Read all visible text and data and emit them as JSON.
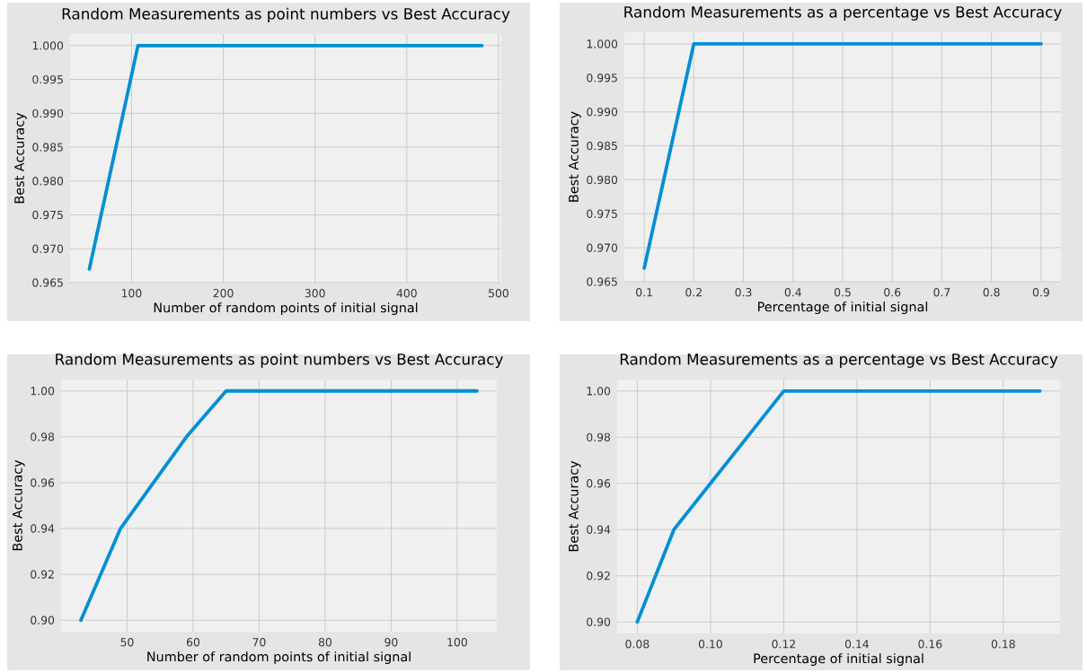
{
  "chart_data": [
    {
      "type": "line",
      "title": "Random Measurements as point numbers vs Best Accuracy",
      "xlabel": "Number of random points of initial signal",
      "ylabel": "Best Accuracy",
      "x": [
        54,
        107,
        161,
        214,
        268,
        321,
        375,
        428,
        482
      ],
      "series": [
        {
          "color": "#008fd5",
          "values": [
            0.967,
            1.0,
            1.0,
            1.0,
            1.0,
            1.0,
            1.0,
            1.0,
            1.0
          ]
        }
      ],
      "xlim": [
        33,
        503
      ],
      "ylim": [
        0.965,
        1.0017
      ],
      "xticks": [
        100,
        200,
        300,
        400,
        500
      ],
      "yticks": [
        {
          "value": 0.965,
          "label": "0.965"
        },
        {
          "value": 0.97,
          "label": "0.970"
        },
        {
          "value": 0.975,
          "label": "0.975"
        },
        {
          "value": 0.98,
          "label": "0.980"
        },
        {
          "value": 0.985,
          "label": "0.985"
        },
        {
          "value": 0.99,
          "label": "0.990"
        },
        {
          "value": 0.995,
          "label": "0.995"
        },
        {
          "value": 1.0,
          "label": "1.000"
        }
      ],
      "grid": true,
      "line_style": "solid",
      "marker": "none"
    },
    {
      "type": "line",
      "title": "Random Measurements as a percentage vs Best Accuracy",
      "xlabel": "Percentage of initial signal",
      "ylabel": "Best Accuracy",
      "x": [
        0.1,
        0.2,
        0.3,
        0.4,
        0.5,
        0.6,
        0.7,
        0.8,
        0.9
      ],
      "series": [
        {
          "color": "#008fd5",
          "values": [
            0.967,
            1.0,
            1.0,
            1.0,
            1.0,
            1.0,
            1.0,
            1.0,
            1.0
          ]
        }
      ],
      "xlim": [
        0.06,
        0.94
      ],
      "ylim": [
        0.965,
        1.0017
      ],
      "xticks": [
        0.1,
        0.2,
        0.3,
        0.4,
        0.5,
        0.6,
        0.7,
        0.8,
        0.9
      ],
      "yticks": [
        {
          "value": 0.965,
          "label": "0.965"
        },
        {
          "value": 0.97,
          "label": "0.970"
        },
        {
          "value": 0.975,
          "label": "0.975"
        },
        {
          "value": 0.98,
          "label": "0.980"
        },
        {
          "value": 0.985,
          "label": "0.985"
        },
        {
          "value": 0.99,
          "label": "0.990"
        },
        {
          "value": 0.995,
          "label": "0.995"
        },
        {
          "value": 1.0,
          "label": "1.000"
        }
      ],
      "grid": true,
      "line_style": "solid",
      "marker": "none"
    },
    {
      "type": "line",
      "title": "Random Measurements as point numbers vs Best Accuracy",
      "xlabel": "Number of random points of initial signal",
      "ylabel": "Best Accuracy",
      "x": [
        43,
        49,
        54,
        59,
        65,
        70,
        76,
        81,
        86,
        92,
        97,
        103
      ],
      "series": [
        {
          "color": "#008fd5",
          "values": [
            0.9,
            0.94,
            0.96,
            0.98,
            1.0,
            1.0,
            1.0,
            1.0,
            1.0,
            1.0,
            1.0,
            1.0
          ]
        }
      ],
      "xlim": [
        40,
        106
      ],
      "ylim": [
        0.895,
        1.005
      ],
      "xticks": [
        50,
        60,
        70,
        80,
        90,
        100
      ],
      "yticks": [
        {
          "value": 0.9,
          "label": "0.90"
        },
        {
          "value": 0.92,
          "label": "0.92"
        },
        {
          "value": 0.94,
          "label": "0.94"
        },
        {
          "value": 0.96,
          "label": "0.96"
        },
        {
          "value": 0.98,
          "label": "0.98"
        },
        {
          "value": 1.0,
          "label": "1.00"
        }
      ],
      "grid": true,
      "line_style": "solid",
      "marker": "none"
    },
    {
      "type": "line",
      "title": "Random Measurements as a percentage vs Best Accuracy",
      "xlabel": "Percentage of initial signal",
      "ylabel": "Best Accuracy",
      "x": [
        0.08,
        0.09,
        0.1,
        0.11,
        0.12,
        0.13,
        0.14,
        0.15,
        0.16,
        0.17,
        0.18,
        0.19
      ],
      "series": [
        {
          "color": "#008fd5",
          "values": [
            0.9,
            0.94,
            0.96,
            0.98,
            1.0,
            1.0,
            1.0,
            1.0,
            1.0,
            1.0,
            1.0,
            1.0
          ]
        }
      ],
      "xlim": [
        0.0745,
        0.1955
      ],
      "ylim": [
        0.895,
        1.005
      ],
      "xticks": [
        {
          "value": 0.08,
          "label": "0.08"
        },
        {
          "value": 0.1,
          "label": "0.10"
        },
        {
          "value": 0.12,
          "label": "0.12"
        },
        {
          "value": 0.14,
          "label": "0.14"
        },
        {
          "value": 0.16,
          "label": "0.16"
        },
        {
          "value": 0.18,
          "label": "0.18"
        }
      ],
      "yticks": [
        {
          "value": 0.9,
          "label": "0.90"
        },
        {
          "value": 0.92,
          "label": "0.92"
        },
        {
          "value": 0.94,
          "label": "0.94"
        },
        {
          "value": 0.96,
          "label": "0.96"
        },
        {
          "value": 0.98,
          "label": "0.98"
        },
        {
          "value": 1.0,
          "label": "1.00"
        }
      ],
      "grid": true,
      "line_style": "solid",
      "marker": "none"
    }
  ]
}
